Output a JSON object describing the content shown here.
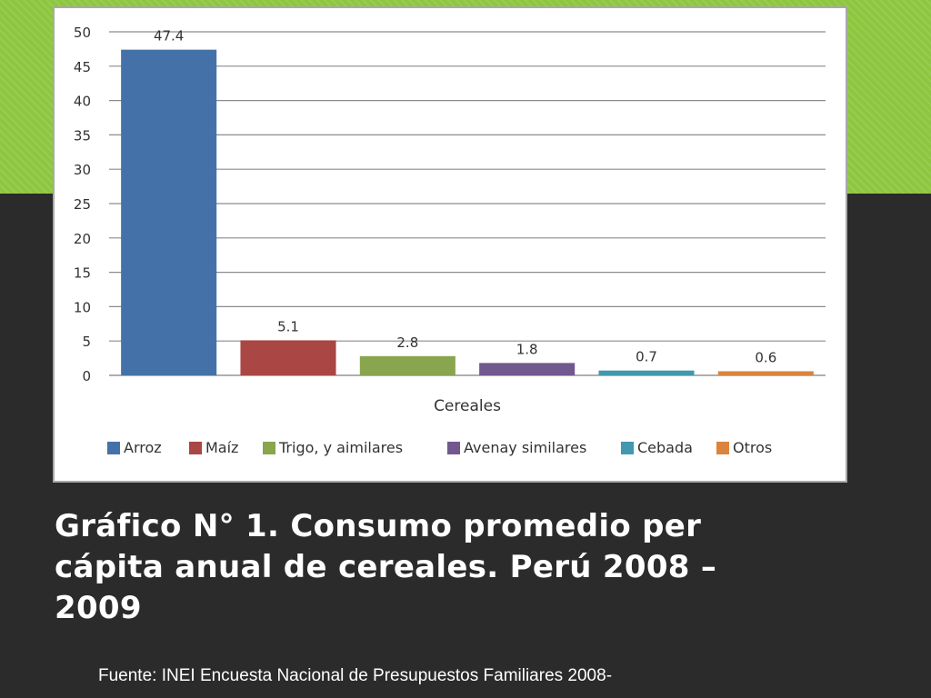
{
  "slide": {
    "title_lines": [
      "Gráfico N° 1. Consumo promedio per",
      "cápita anual de cereales. Perú 2008 –",
      "2009"
    ],
    "source": "Fuente: INEI Encuesta Nacional de Presupuestos Familiares 2008-"
  },
  "colors": {
    "background": "#2b2b2b",
    "band": "#8dc63f"
  },
  "chart_data": {
    "type": "bar",
    "title": "",
    "xlabel": "Cereales",
    "ylabel": "",
    "ylim": [
      0,
      50
    ],
    "ytick_step": 5,
    "y_ticks": [
      "0",
      "5",
      "10",
      "15",
      "20",
      "25",
      "30",
      "35",
      "40",
      "45",
      "50"
    ],
    "grid": true,
    "legend_position": "bottom",
    "series": [
      {
        "name": "Arroz",
        "value": 47.4,
        "label": "47.4",
        "color": "#4472a8"
      },
      {
        "name": "Maíz",
        "value": 5.1,
        "label": "5.1",
        "color": "#aa4643"
      },
      {
        "name": "Trigo, y aimilares",
        "value": 2.8,
        "label": "2.8",
        "color": "#89a54e"
      },
      {
        "name": "Avenay similares",
        "value": 1.8,
        "label": "1.8",
        "color": "#71588f"
      },
      {
        "name": "Cebada",
        "value": 0.7,
        "label": "0.7",
        "color": "#4198af"
      },
      {
        "name": "Otros",
        "value": 0.6,
        "label": "0.6",
        "color": "#db843d"
      }
    ]
  }
}
